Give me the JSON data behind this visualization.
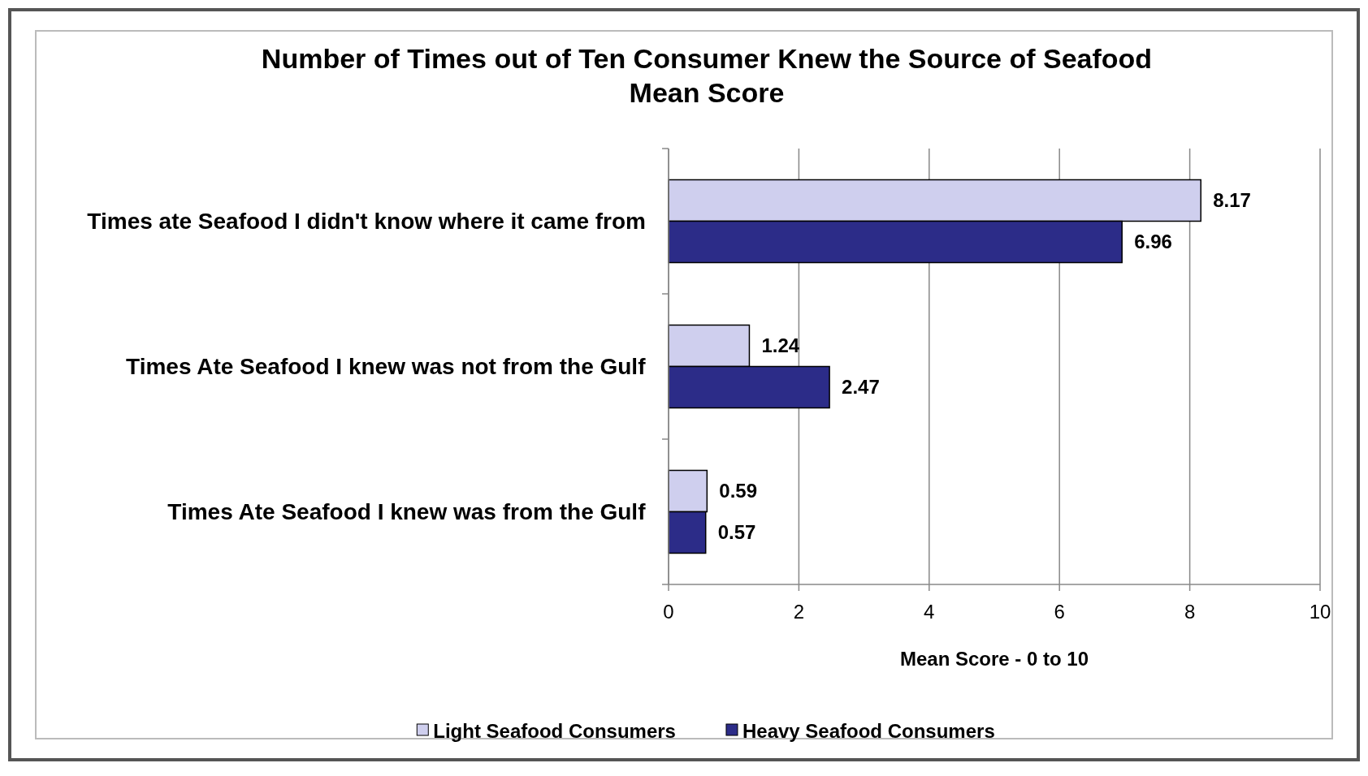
{
  "chart_data": {
    "type": "bar",
    "orientation": "horizontal",
    "title": "Number of Times out of Ten Consumer Knew the Source of Seafood\nMean Score",
    "xlabel": "Mean Score - 0 to 10",
    "categories": [
      "Times ate Seafood I didn't know where it came from",
      "Times Ate Seafood I knew was not from the Gulf",
      "Times Ate Seafood I knew was from the Gulf"
    ],
    "series": [
      {
        "name": "Light Seafood Consumers",
        "color": "#cfcfee",
        "values": [
          8.17,
          1.24,
          0.59
        ]
      },
      {
        "name": "Heavy Seafood Consumers",
        "color": "#2c2c88",
        "values": [
          6.96,
          2.47,
          0.57
        ]
      }
    ],
    "xlim": [
      0,
      10
    ],
    "xticks": [
      0,
      2,
      4,
      6,
      8,
      10
    ],
    "grid": "x",
    "data_labels": true,
    "legend": "bottom"
  }
}
